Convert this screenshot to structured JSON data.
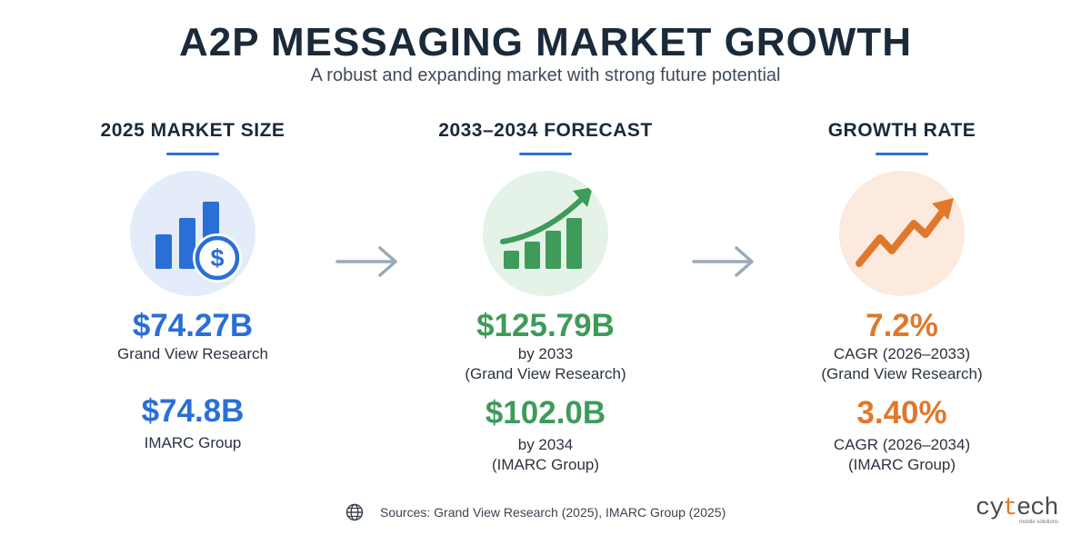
{
  "header": {
    "title": "A2P MESSAGING MARKET GROWTH",
    "subtitle": "A robust and expanding market with strong future potential"
  },
  "columns": [
    {
      "heading": "2025 MARKET SIZE",
      "icon": "bar-chart-dollar-icon",
      "accent": "#2a6fd6",
      "primary_value": "$74.27B",
      "primary_lines": [
        "Grand View Research"
      ],
      "secondary_value": "$74.8B",
      "secondary_lines": [
        "IMARC Group"
      ]
    },
    {
      "heading": "2033–2034 FORECAST",
      "icon": "growth-bars-arrow-icon",
      "accent": "#3e9b5a",
      "primary_value": "$125.79B",
      "primary_lines": [
        "by 2033",
        "(Grand View Research)"
      ],
      "secondary_value": "$102.0B",
      "secondary_lines": [
        "by 2034",
        "(IMARC Group)"
      ]
    },
    {
      "heading": "GROWTH RATE",
      "icon": "trend-arrow-icon",
      "accent": "#e0782c",
      "primary_value": "7.2%",
      "primary_lines": [
        "CAGR (2026–2033)",
        "(Grand View Research)"
      ],
      "secondary_value": "3.40%",
      "secondary_lines": [
        "CAGR (2026–2034)",
        "(IMARC Group)"
      ]
    }
  ],
  "footer": {
    "sources": "Sources: Grand View Research (2025), IMARC Group (2025)",
    "icon": "globe-icon"
  },
  "logo": {
    "name": "cytech",
    "tagline": "mobile solutions",
    "colors": [
      "#4a4a4a",
      "#e57a2a"
    ]
  }
}
